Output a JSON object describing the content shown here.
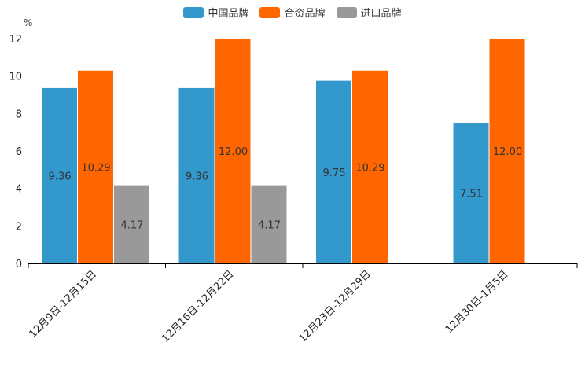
{
  "chart_data": {
    "type": "bar",
    "unit_label": "%",
    "categories": [
      "12月9日-12月15日",
      "12月16日-12月22日",
      "12月23日-12月29日",
      "12月30日-1月5日"
    ],
    "series": [
      {
        "name": "中国品牌",
        "color": "#3398cc",
        "values": [
          9.36,
          9.36,
          9.75,
          7.51
        ],
        "labels": [
          "9.36",
          "9.36",
          "9.75",
          "7.51"
        ]
      },
      {
        "name": "合资品牌",
        "color": "#ff6600",
        "values": [
          10.29,
          12.0,
          10.29,
          12.0
        ],
        "labels": [
          "10.29",
          "12.00",
          "10.29",
          "12.00"
        ]
      },
      {
        "name": "进口品牌",
        "color": "#999999",
        "values": [
          4.17,
          4.17,
          null,
          null
        ],
        "labels": [
          "4.17",
          "4.17",
          "",
          ""
        ]
      }
    ],
    "ylim": [
      0,
      12
    ],
    "yticks": [
      "0",
      "2",
      "4",
      "6",
      "8",
      "10",
      "12"
    ],
    "legend_position": "top-center",
    "grid": false
  }
}
